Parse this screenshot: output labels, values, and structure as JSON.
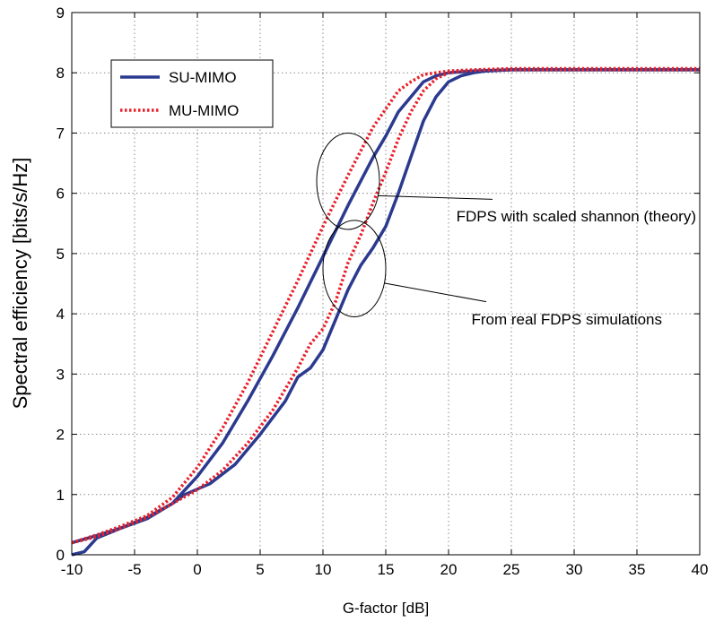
{
  "chart_data": {
    "type": "line",
    "title": "",
    "xlabel": "G-factor [dB]",
    "ylabel": "Spectral efficiency [bits/s/Hz]",
    "xlim": [
      -10,
      40
    ],
    "ylim": [
      0,
      9
    ],
    "xticks": [
      -10,
      -5,
      0,
      5,
      10,
      15,
      20,
      25,
      30,
      35,
      40
    ],
    "yticks": [
      0,
      1,
      2,
      3,
      4,
      5,
      6,
      7,
      8,
      9
    ],
    "grid": true,
    "legend": {
      "position": "top-left"
    },
    "colors": {
      "su": "#2b3a8f",
      "mu": "#e8202a"
    },
    "series": [
      {
        "name": "SU-MIMO",
        "style": "solid",
        "curves": [
          [
            [
              -10,
              0.2
            ],
            [
              -8,
              0.32
            ],
            [
              -6,
              0.45
            ],
            [
              -4,
              0.6
            ],
            [
              -2,
              0.85
            ],
            [
              0,
              1.3
            ],
            [
              2,
              1.85
            ],
            [
              4,
              2.55
            ],
            [
              6,
              3.3
            ],
            [
              8,
              4.1
            ],
            [
              10,
              4.95
            ],
            [
              12,
              5.8
            ],
            [
              14,
              6.6
            ],
            [
              15,
              6.95
            ],
            [
              16,
              7.35
            ],
            [
              17,
              7.6
            ],
            [
              18,
              7.85
            ],
            [
              19,
              7.95
            ],
            [
              20,
              8.0
            ],
            [
              22,
              8.03
            ],
            [
              25,
              8.05
            ],
            [
              40,
              8.05
            ]
          ],
          [
            [
              -10,
              0.0
            ],
            [
              -9,
              0.05
            ],
            [
              -8,
              0.28
            ],
            [
              -6,
              0.45
            ],
            [
              -4,
              0.62
            ],
            [
              -2,
              0.85
            ],
            [
              -1,
              1.0
            ],
            [
              1,
              1.18
            ],
            [
              3,
              1.5
            ],
            [
              5,
              2.0
            ],
            [
              7,
              2.55
            ],
            [
              8,
              2.95
            ],
            [
              9,
              3.1
            ],
            [
              10,
              3.4
            ],
            [
              11,
              3.9
            ],
            [
              12,
              4.4
            ],
            [
              13,
              4.8
            ],
            [
              14,
              5.1
            ],
            [
              15,
              5.45
            ],
            [
              16,
              6.0
            ],
            [
              17,
              6.6
            ],
            [
              18,
              7.2
            ],
            [
              19,
              7.6
            ],
            [
              20,
              7.85
            ],
            [
              21,
              7.95
            ],
            [
              22,
              8.0
            ],
            [
              23,
              8.03
            ],
            [
              25,
              8.05
            ],
            [
              40,
              8.05
            ]
          ]
        ]
      },
      {
        "name": "MU-MIMO",
        "style": "dotted",
        "curves": [
          [
            [
              -10,
              0.2
            ],
            [
              -8,
              0.33
            ],
            [
              -6,
              0.48
            ],
            [
              -4,
              0.65
            ],
            [
              -2,
              0.95
            ],
            [
              0,
              1.45
            ],
            [
              2,
              2.1
            ],
            [
              4,
              2.85
            ],
            [
              6,
              3.7
            ],
            [
              8,
              4.55
            ],
            [
              10,
              5.45
            ],
            [
              12,
              6.3
            ],
            [
              14,
              7.1
            ],
            [
              15,
              7.4
            ],
            [
              16,
              7.7
            ],
            [
              17,
              7.85
            ],
            [
              18,
              7.97
            ],
            [
              19,
              8.0
            ],
            [
              20,
              8.03
            ],
            [
              22,
              8.05
            ],
            [
              25,
              8.07
            ],
            [
              40,
              8.07
            ]
          ],
          [
            [
              -10,
              0.2
            ],
            [
              -8,
              0.3
            ],
            [
              -6,
              0.45
            ],
            [
              -4,
              0.62
            ],
            [
              -2,
              0.85
            ],
            [
              0,
              1.08
            ],
            [
              2,
              1.4
            ],
            [
              4,
              1.85
            ],
            [
              6,
              2.4
            ],
            [
              8,
              3.1
            ],
            [
              9,
              3.5
            ],
            [
              10,
              3.75
            ],
            [
              11,
              4.2
            ],
            [
              12,
              4.85
            ],
            [
              13,
              5.3
            ],
            [
              14,
              5.85
            ],
            [
              15,
              6.35
            ],
            [
              16,
              6.9
            ],
            [
              17,
              7.35
            ],
            [
              18,
              7.7
            ],
            [
              19,
              7.9
            ],
            [
              20,
              8.0
            ],
            [
              21,
              8.03
            ],
            [
              23,
              8.05
            ],
            [
              40,
              8.05
            ]
          ]
        ]
      }
    ],
    "annotations": [
      {
        "text": "FDPS with scaled shannon (theory)",
        "ellipse_center": [
          12,
          6.2
        ],
        "ellipse_radius": [
          2.5,
          0.8
        ],
        "line_to": [
          23.5,
          5.9
        ]
      },
      {
        "text": "From real FDPS simulations",
        "ellipse_center": [
          12.5,
          4.75
        ],
        "ellipse_radius": [
          2.5,
          0.8
        ],
        "line_to": [
          23,
          4.2
        ]
      }
    ]
  }
}
